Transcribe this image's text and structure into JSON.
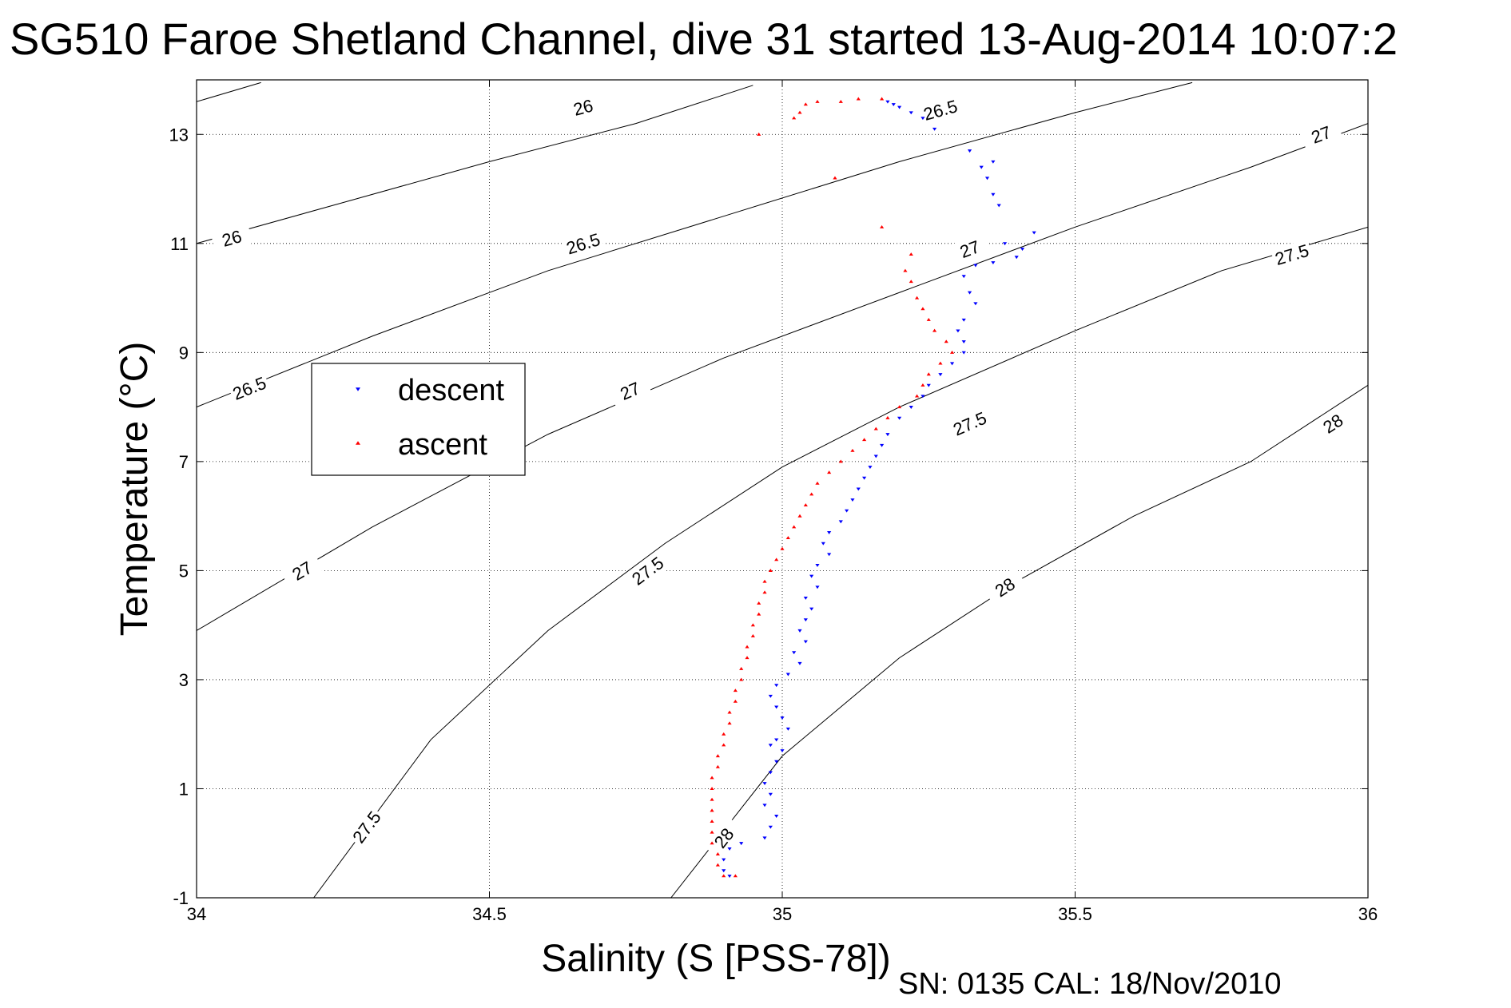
{
  "chart_data": {
    "type": "scatter",
    "title": "SG510 Faroe Shetland Channel, dive 31 started 13-Aug-2014 10:07:2",
    "xlabel": "Salinity (S [PSS-78])",
    "ylabel": "Temperature (°C)",
    "xlim": [
      34,
      36
    ],
    "ylim": [
      -1,
      14
    ],
    "xticks": [
      34,
      34.5,
      35,
      35.5,
      36
    ],
    "xtick_labels": [
      "34",
      "34.5",
      "35",
      "35.5",
      "36"
    ],
    "yticks": [
      -1,
      1,
      3,
      5,
      7,
      9,
      11,
      13
    ],
    "ytick_labels": [
      "-1",
      "1",
      "3",
      "5",
      "7",
      "9",
      "11",
      "13"
    ],
    "grid": true,
    "legend": {
      "position": "left",
      "entries": [
        {
          "label": "descent",
          "color": "#0000ff",
          "marker": "down-triangle"
        },
        {
          "label": "ascent",
          "color": "#ff0000",
          "marker": "up-triangle"
        }
      ]
    },
    "footer": "SN: 0135  CAL: 18/Nov/2010",
    "contours": [
      {
        "sigma": "26",
        "points": [
          [
            34.0,
            13.6
          ],
          [
            34.11,
            13.95
          ]
        ],
        "labels": []
      },
      {
        "sigma": "26",
        "points": [
          [
            34.0,
            11.0
          ],
          [
            34.25,
            11.75
          ],
          [
            34.5,
            12.5
          ],
          [
            34.75,
            13.2
          ],
          [
            34.95,
            13.9
          ]
        ],
        "labels": [
          [
            34.06,
            11.1
          ],
          [
            34.66,
            13.5
          ]
        ]
      },
      {
        "sigma": "26.5",
        "points": [
          [
            34.0,
            8.0
          ],
          [
            34.3,
            9.3
          ],
          [
            34.6,
            10.5
          ],
          [
            34.9,
            11.5
          ],
          [
            35.2,
            12.5
          ],
          [
            35.5,
            13.4
          ],
          [
            35.7,
            13.95
          ]
        ],
        "labels": [
          [
            34.09,
            8.35
          ],
          [
            34.66,
            11.0
          ],
          [
            35.27,
            13.45
          ]
        ]
      },
      {
        "sigma": "27",
        "points": [
          [
            34.0,
            3.9
          ],
          [
            34.3,
            5.8
          ],
          [
            34.6,
            7.5
          ],
          [
            34.9,
            8.9
          ],
          [
            35.2,
            10.1
          ],
          [
            35.5,
            11.3
          ],
          [
            35.8,
            12.4
          ],
          [
            36.0,
            13.2
          ]
        ],
        "labels": [
          [
            34.18,
            5.0
          ],
          [
            34.74,
            8.3
          ],
          [
            35.32,
            10.9
          ],
          [
            35.92,
            13.0
          ]
        ]
      },
      {
        "sigma": "27.5",
        "points": [
          [
            34.2,
            -1.0
          ],
          [
            34.4,
            1.9
          ],
          [
            34.6,
            3.9
          ],
          [
            34.8,
            5.5
          ],
          [
            35.0,
            6.9
          ],
          [
            35.2,
            8.0
          ],
          [
            35.5,
            9.4
          ],
          [
            35.75,
            10.5
          ],
          [
            36.0,
            11.3
          ]
        ],
        "labels": [
          [
            34.29,
            0.3
          ],
          [
            34.77,
            5.0
          ],
          [
            35.32,
            7.7
          ],
          [
            35.87,
            10.8
          ]
        ]
      },
      {
        "sigma": "28",
        "points": [
          [
            34.81,
            -1.0
          ],
          [
            35.0,
            1.6
          ],
          [
            35.2,
            3.4
          ],
          [
            35.4,
            4.8
          ],
          [
            35.6,
            6.0
          ],
          [
            35.8,
            7.0
          ],
          [
            36.0,
            8.4
          ]
        ],
        "labels": [
          [
            34.9,
            0.1
          ],
          [
            35.38,
            4.7
          ],
          [
            35.94,
            7.7
          ]
        ]
      }
    ],
    "series": [
      {
        "name": "descent",
        "color": "#0000ff",
        "points": [
          [
            35.18,
            13.6
          ],
          [
            35.19,
            13.55
          ],
          [
            35.2,
            13.5
          ],
          [
            35.22,
            13.4
          ],
          [
            35.24,
            13.3
          ],
          [
            35.26,
            13.1
          ],
          [
            35.32,
            12.7
          ],
          [
            35.34,
            12.4
          ],
          [
            35.36,
            12.5
          ],
          [
            35.35,
            12.2
          ],
          [
            35.36,
            11.9
          ],
          [
            35.37,
            11.7
          ],
          [
            35.43,
            11.2
          ],
          [
            35.41,
            10.9
          ],
          [
            35.4,
            10.75
          ],
          [
            35.38,
            11.0
          ],
          [
            35.36,
            10.65
          ],
          [
            35.33,
            10.6
          ],
          [
            35.31,
            10.4
          ],
          [
            35.32,
            10.1
          ],
          [
            35.33,
            9.9
          ],
          [
            35.31,
            9.6
          ],
          [
            35.3,
            9.4
          ],
          [
            35.31,
            9.2
          ],
          [
            35.31,
            9.0
          ],
          [
            35.29,
            8.8
          ],
          [
            35.27,
            8.6
          ],
          [
            35.25,
            8.4
          ],
          [
            35.24,
            8.2
          ],
          [
            35.22,
            8.0
          ],
          [
            35.2,
            7.8
          ],
          [
            35.18,
            7.5
          ],
          [
            35.17,
            7.3
          ],
          [
            35.16,
            7.1
          ],
          [
            35.15,
            6.9
          ],
          [
            35.14,
            6.7
          ],
          [
            35.13,
            6.5
          ],
          [
            35.12,
            6.3
          ],
          [
            35.11,
            6.1
          ],
          [
            35.1,
            5.9
          ],
          [
            35.08,
            5.7
          ],
          [
            35.07,
            5.5
          ],
          [
            35.08,
            5.3
          ],
          [
            35.06,
            5.1
          ],
          [
            35.05,
            4.9
          ],
          [
            35.06,
            4.7
          ],
          [
            35.04,
            4.5
          ],
          [
            35.05,
            4.3
          ],
          [
            35.04,
            4.1
          ],
          [
            35.03,
            3.9
          ],
          [
            35.04,
            3.7
          ],
          [
            35.02,
            3.5
          ],
          [
            35.03,
            3.3
          ],
          [
            35.01,
            3.1
          ],
          [
            34.99,
            2.9
          ],
          [
            34.98,
            2.7
          ],
          [
            34.99,
            2.5
          ],
          [
            35.0,
            2.3
          ],
          [
            35.01,
            2.1
          ],
          [
            34.99,
            1.9
          ],
          [
            34.98,
            1.8
          ],
          [
            35.0,
            1.7
          ],
          [
            34.99,
            1.5
          ],
          [
            34.98,
            1.3
          ],
          [
            34.97,
            1.1
          ],
          [
            34.98,
            0.9
          ],
          [
            34.97,
            0.7
          ],
          [
            34.99,
            0.5
          ],
          [
            34.98,
            0.3
          ],
          [
            34.97,
            0.1
          ],
          [
            34.93,
            0.0
          ],
          [
            34.91,
            -0.1
          ],
          [
            34.9,
            -0.3
          ],
          [
            34.9,
            -0.5
          ],
          [
            34.91,
            -0.6
          ]
        ]
      },
      {
        "name": "ascent",
        "color": "#ff0000",
        "points": [
          [
            35.17,
            13.65
          ],
          [
            35.13,
            13.65
          ],
          [
            35.1,
            13.6
          ],
          [
            35.06,
            13.6
          ],
          [
            35.04,
            13.55
          ],
          [
            35.03,
            13.4
          ],
          [
            35.02,
            13.3
          ],
          [
            34.96,
            13.0
          ],
          [
            35.09,
            12.2
          ],
          [
            35.17,
            11.3
          ],
          [
            35.22,
            10.8
          ],
          [
            35.21,
            10.5
          ],
          [
            35.22,
            10.3
          ],
          [
            35.23,
            10.0
          ],
          [
            35.24,
            9.8
          ],
          [
            35.25,
            9.6
          ],
          [
            35.26,
            9.4
          ],
          [
            35.28,
            9.2
          ],
          [
            35.29,
            9.0
          ],
          [
            35.27,
            8.8
          ],
          [
            35.25,
            8.6
          ],
          [
            35.24,
            8.4
          ],
          [
            35.23,
            8.2
          ],
          [
            35.2,
            8.0
          ],
          [
            35.18,
            7.8
          ],
          [
            35.16,
            7.6
          ],
          [
            35.14,
            7.4
          ],
          [
            35.12,
            7.2
          ],
          [
            35.1,
            7.0
          ],
          [
            35.08,
            6.8
          ],
          [
            35.06,
            6.6
          ],
          [
            35.05,
            6.4
          ],
          [
            35.04,
            6.2
          ],
          [
            35.03,
            6.0
          ],
          [
            35.02,
            5.8
          ],
          [
            35.01,
            5.6
          ],
          [
            35.0,
            5.4
          ],
          [
            34.99,
            5.2
          ],
          [
            34.98,
            5.0
          ],
          [
            34.97,
            4.8
          ],
          [
            34.97,
            4.6
          ],
          [
            34.96,
            4.4
          ],
          [
            34.96,
            4.2
          ],
          [
            34.95,
            4.0
          ],
          [
            34.95,
            3.8
          ],
          [
            34.94,
            3.6
          ],
          [
            34.94,
            3.4
          ],
          [
            34.93,
            3.2
          ],
          [
            34.93,
            3.0
          ],
          [
            34.92,
            2.8
          ],
          [
            34.92,
            2.6
          ],
          [
            34.91,
            2.4
          ],
          [
            34.91,
            2.2
          ],
          [
            34.9,
            2.0
          ],
          [
            34.9,
            1.8
          ],
          [
            34.89,
            1.6
          ],
          [
            34.89,
            1.4
          ],
          [
            34.88,
            1.2
          ],
          [
            34.88,
            1.0
          ],
          [
            34.88,
            0.8
          ],
          [
            34.88,
            0.6
          ],
          [
            34.88,
            0.4
          ],
          [
            34.88,
            0.2
          ],
          [
            34.88,
            0.0
          ],
          [
            34.89,
            -0.2
          ],
          [
            34.89,
            -0.4
          ],
          [
            34.9,
            -0.6
          ],
          [
            34.92,
            -0.6
          ]
        ]
      }
    ]
  }
}
